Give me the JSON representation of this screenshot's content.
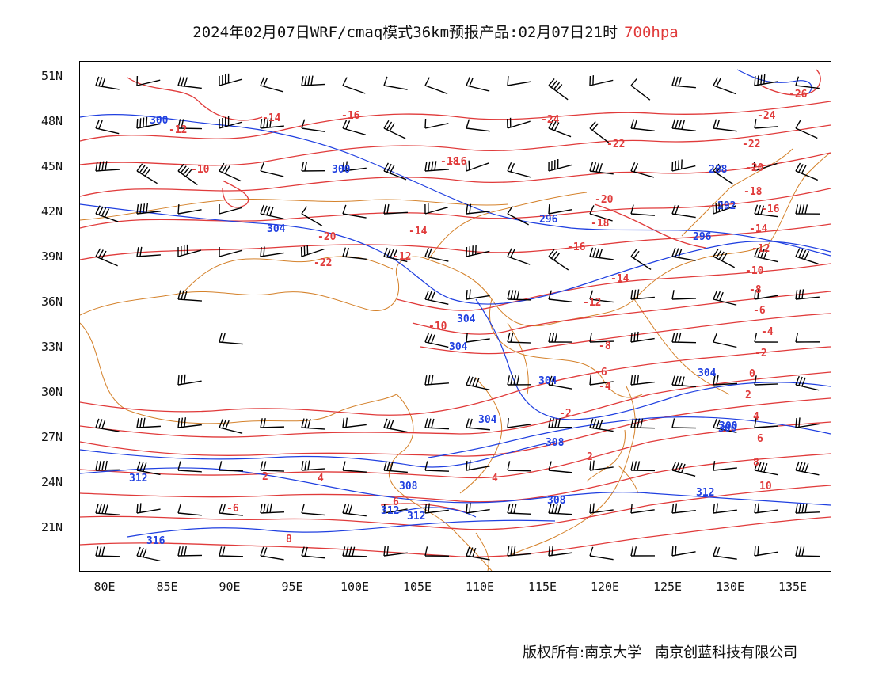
{
  "title": {
    "main": "2024年02月07日WRF/cmaq模式36km预报产品:02月07日21时",
    "level": "700hpa"
  },
  "colors": {
    "temperature": "#e03a3a",
    "geopotential": "#1f3fe0",
    "border": "#d4812a",
    "wind": "#000000",
    "level_text": "#e03a3a"
  },
  "axes": {
    "lat_labels": [
      "51N",
      "48N",
      "45N",
      "42N",
      "39N",
      "36N",
      "33N",
      "30N",
      "27N",
      "24N",
      "21N"
    ],
    "lon_labels": [
      "80E",
      "85E",
      "90E",
      "95E",
      "100E",
      "105E",
      "110E",
      "115E",
      "120E",
      "125E",
      "130E",
      "135E"
    ]
  },
  "temperature_labels": [
    "-26",
    "-24",
    "-22",
    "-20",
    "-18",
    "-16",
    "-14",
    "-12",
    "-10",
    "-8",
    "-6",
    "-4",
    "-2",
    "0",
    "2",
    "4",
    "6",
    "8",
    "10",
    "-16",
    "-14",
    "-12",
    "-10",
    "-12",
    "-14",
    "-16",
    "-18",
    "-20",
    "-22",
    "-24",
    "-10",
    "-8",
    "-6",
    "-4",
    "-2",
    "2",
    "4",
    "6",
    "8",
    "-12",
    "-14",
    "-16",
    "-18",
    "-20",
    "-22",
    "-6",
    "2",
    "4"
  ],
  "height_labels": [
    "300",
    "300",
    "304",
    "304",
    "304",
    "304",
    "296",
    "292",
    "296",
    "288",
    "300",
    "304",
    "304",
    "308",
    "308",
    "312",
    "312",
    "312",
    "312",
    "316",
    "308",
    "300"
  ],
  "footer": {
    "copyright": "版权所有:南京大学",
    "company": "南京创蓝科技有限公司"
  }
}
